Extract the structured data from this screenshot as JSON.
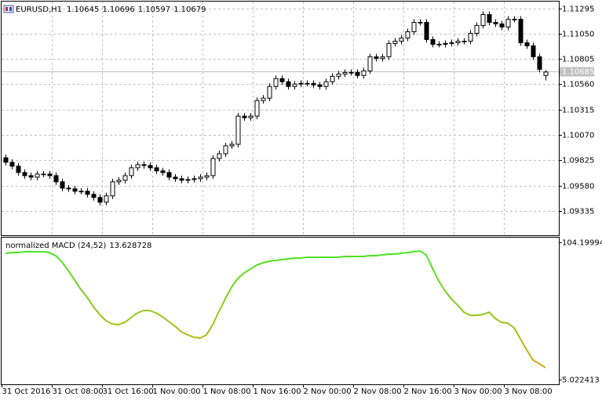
{
  "chart_data": [
    {
      "type": "candlestick",
      "title": "EURUSD,H1",
      "ylim": [
        1.091,
        1.1136
      ],
      "yticks": [
        1.11295,
        {
          "value": 1.1105,
          "label": "1.11050"
        },
        1.10805,
        {
          "value": 1.1056,
          "label": "1.10560"
        },
        1.10315,
        {
          "value": 1.1007,
          "label": "1.10070"
        },
        1.09825,
        {
          "value": 1.0958,
          "label": "1.09580"
        },
        1.09335
      ],
      "grid": true,
      "price_line": 1.10685,
      "up_color": "#ffffff",
      "down_color": "#000000",
      "wick_color": "#000000",
      "open": [
        1.0985,
        1.09806,
        1.09768,
        1.09707,
        1.09677,
        1.09662,
        1.09692,
        1.09692,
        1.09677,
        1.09617,
        1.09556,
        1.09549,
        1.09526,
        1.09526,
        1.09496,
        1.09466,
        1.0942,
        1.09481,
        1.09617,
        1.09632,
        1.09677,
        1.09753,
        1.09783,
        1.09775,
        1.09753,
        1.09723,
        1.09707,
        1.09662,
        1.09647,
        1.09632,
        1.09639,
        1.09647,
        1.09662,
        1.09677,
        1.09843,
        1.09889,
        1.09965,
        1.0998,
        1.10252,
        1.10237,
        1.10252,
        1.10403,
        1.10426,
        1.10539,
        1.10615,
        1.10585,
        1.10539,
        1.10562,
        1.10569,
        1.10569,
        1.10554,
        1.10539,
        1.10585,
        1.10637,
        1.1066,
        1.10675,
        1.10675,
        1.10645,
        1.1069,
        1.10826,
        1.10811,
        1.10826,
        1.10955,
        1.10977,
        1.11008,
        1.11068,
        1.11159,
        1.11159,
        1.10993,
        1.10947,
        1.10947,
        1.10955,
        1.10962,
        1.10977,
        1.10977,
        1.11053,
        1.11129,
        1.11235,
        1.11159,
        1.11144,
        1.11114,
        1.11189,
        1.11189,
        1.10962,
        1.10932,
        1.10826,
        1.10645
      ],
      "high": [
        1.0988,
        1.09836,
        1.09798,
        1.09737,
        1.09707,
        1.09722,
        1.09722,
        1.09722,
        1.09707,
        1.09647,
        1.09586,
        1.09579,
        1.09556,
        1.09556,
        1.09526,
        1.09496,
        1.09511,
        1.09647,
        1.09662,
        1.09707,
        1.09783,
        1.09813,
        1.09813,
        1.09805,
        1.09783,
        1.09753,
        1.09737,
        1.09692,
        1.09677,
        1.09669,
        1.09677,
        1.09692,
        1.09707,
        1.09873,
        1.09919,
        1.09995,
        1.1001,
        1.10282,
        1.10282,
        1.10282,
        1.10433,
        1.10456,
        1.10569,
        1.10645,
        1.10645,
        1.10615,
        1.10592,
        1.10599,
        1.10599,
        1.10599,
        1.10584,
        1.10615,
        1.10667,
        1.1069,
        1.10705,
        1.10705,
        1.10705,
        1.1072,
        1.10856,
        1.10856,
        1.10856,
        1.10985,
        1.11007,
        1.11038,
        1.11098,
        1.11189,
        1.11189,
        1.11189,
        1.11023,
        1.10977,
        1.10985,
        1.10992,
        1.11007,
        1.11007,
        1.11083,
        1.11159,
        1.11265,
        1.11265,
        1.11189,
        1.11174,
        1.11219,
        1.11219,
        1.11219,
        1.10992,
        1.10962,
        1.10856,
        1.10696
      ],
      "low": [
        1.09776,
        1.09738,
        1.09677,
        1.09647,
        1.09632,
        1.09632,
        1.09662,
        1.09647,
        1.09587,
        1.09526,
        1.09519,
        1.09496,
        1.09496,
        1.09466,
        1.09436,
        1.0939,
        1.0939,
        1.09451,
        1.09587,
        1.09602,
        1.09647,
        1.09723,
        1.09745,
        1.09723,
        1.09693,
        1.09677,
        1.09632,
        1.09617,
        1.09602,
        1.09602,
        1.09609,
        1.09617,
        1.09632,
        1.09647,
        1.09813,
        1.09859,
        1.09935,
        1.0995,
        1.10207,
        1.10207,
        1.10222,
        1.10373,
        1.10396,
        1.10509,
        1.10555,
        1.10509,
        1.10509,
        1.10532,
        1.10539,
        1.10524,
        1.10509,
        1.10509,
        1.10555,
        1.10607,
        1.1063,
        1.10645,
        1.10615,
        1.10615,
        1.1066,
        1.10781,
        1.10781,
        1.10796,
        1.10925,
        1.10947,
        1.10978,
        1.11038,
        1.11129,
        1.10963,
        1.10917,
        1.10917,
        1.10917,
        1.10925,
        1.10932,
        1.10947,
        1.10947,
        1.11023,
        1.11099,
        1.11129,
        1.11114,
        1.11084,
        1.11084,
        1.11159,
        1.10932,
        1.10902,
        1.10796,
        1.10675,
        1.10597
      ],
      "close": [
        1.09806,
        1.09768,
        1.09707,
        1.09677,
        1.09662,
        1.09692,
        1.09692,
        1.09677,
        1.09617,
        1.09556,
        1.09549,
        1.09526,
        1.09526,
        1.09496,
        1.09466,
        1.0942,
        1.09481,
        1.09617,
        1.09632,
        1.09677,
        1.09753,
        1.09783,
        1.09775,
        1.09753,
        1.09723,
        1.09707,
        1.09662,
        1.09647,
        1.09632,
        1.09639,
        1.09647,
        1.09662,
        1.09677,
        1.09843,
        1.09889,
        1.09965,
        1.0998,
        1.10252,
        1.10237,
        1.10252,
        1.10403,
        1.10426,
        1.10539,
        1.10615,
        1.10585,
        1.10539,
        1.10562,
        1.10569,
        1.10569,
        1.10554,
        1.10539,
        1.10585,
        1.10637,
        1.1066,
        1.10675,
        1.10675,
        1.10645,
        1.1069,
        1.10826,
        1.10811,
        1.10826,
        1.10955,
        1.10977,
        1.11008,
        1.11068,
        1.11159,
        1.11159,
        1.10993,
        1.10947,
        1.10947,
        1.10955,
        1.10962,
        1.10977,
        1.10977,
        1.11053,
        1.11129,
        1.11235,
        1.11159,
        1.11144,
        1.11114,
        1.11189,
        1.11189,
        1.10962,
        1.10932,
        1.10826,
        1.10705,
        1.10679
      ]
    },
    {
      "type": "line",
      "categories": [
        "31 Oct 2016",
        null,
        null,
        null,
        null,
        null,
        null,
        null,
        "31 Oct 08:00",
        null,
        null,
        null,
        null,
        null,
        null,
        null,
        "31 Oct 16:00",
        null,
        null,
        null,
        null,
        null,
        null,
        null,
        "1 Nov 00:00",
        null,
        null,
        null,
        null,
        null,
        null,
        null,
        "1 Nov 08:00",
        null,
        null,
        null,
        null,
        null,
        null,
        null,
        "1 Nov 16:00",
        null,
        null,
        null,
        null,
        null,
        null,
        null,
        "2 Nov 00:00",
        null,
        null,
        null,
        null,
        null,
        null,
        null,
        "2 Nov 08:00",
        null,
        null,
        null,
        null,
        null,
        null,
        null,
        "2 Nov 16:00",
        null,
        null,
        null,
        null,
        null,
        null,
        null,
        "3 Nov 00:00",
        null,
        null,
        null,
        null,
        null,
        null,
        null,
        "3 Nov 08:00",
        null,
        null,
        null,
        null,
        null,
        null
      ],
      "ylim": [
        1.6,
        108.2
      ],
      "yticks": [
        104.199944,
        5.022413
      ],
      "grid": false,
      "gradient": [
        "#33ee22",
        "#f0a010"
      ],
      "series": [
        {
          "name": "normalized MACD (24,52)",
          "values": [
            96.27,
            96.83,
            96.83,
            97.4,
            97.4,
            97.4,
            97.4,
            96.83,
            94.57,
            90.03,
            83.8,
            77.0,
            70.2,
            64.53,
            57.73,
            52.06,
            47.53,
            45.26,
            44.7,
            46.4,
            49.8,
            53.2,
            54.9,
            54.9,
            53.2,
            50.36,
            46.96,
            43.56,
            39.6,
            37.33,
            35.63,
            35.06,
            37.33,
            44.7,
            54.33,
            63.4,
            71.9,
            78.13,
            82.1,
            84.93,
            87.77,
            89.47,
            90.6,
            91.17,
            91.73,
            92.3,
            92.87,
            92.87,
            93.43,
            93.43,
            93.43,
            93.43,
            93.43,
            93.43,
            94.0,
            94.0,
            94.0,
            94.0,
            94.57,
            94.57,
            95.13,
            95.7,
            95.7,
            96.27,
            96.83,
            97.4,
            97.97,
            95.13,
            85.5,
            76.43,
            69.07,
            63.4,
            58.86,
            53.76,
            51.5,
            51.5,
            52.06,
            53.76,
            49.23,
            46.4,
            45.83,
            42.43,
            34.5,
            26.56,
            19.2,
            16.5,
            13.628728
          ]
        }
      ]
    }
  ]
}
